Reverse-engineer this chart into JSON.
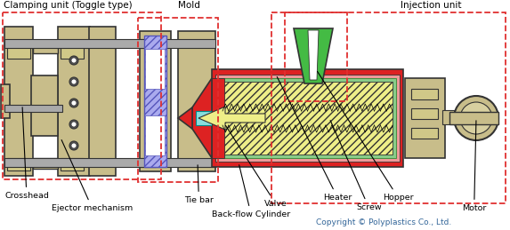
{
  "bg_color": "#ffffff",
  "dashed_red": "#e03030",
  "tan": "#c8bd8a",
  "tan_dark": "#a09870",
  "tan_edge": "#333333",
  "blue_fill": "#aaaaee",
  "blue_edge": "#5555bb",
  "green_fill": "#44bb44",
  "red_fill": "#dd2222",
  "pink_fill": "#ee9999",
  "yellow_fill": "#eeee88",
  "cyan_fill": "#88dddd",
  "green_light": "#88cc88",
  "gray_shaft": "#aaaaaa",
  "black": "#000000",
  "copyright_color": "#336699",
  "copyright_text": "Copyright © Polyplastics Co., Ltd.",
  "labels": {
    "clamping_unit": "Clamping unit (Toggle type)",
    "mold": "Mold",
    "injection_unit": "Injection unit",
    "crosshead": "Crosshead",
    "ejector": "Ejector mechanism",
    "tiebar": "Tie bar",
    "backflow": "Back-flow Cylinder",
    "valve": "Valve",
    "heater": "Heater",
    "screw": "Screw",
    "hopper": "Hopper",
    "motor": "Motor"
  }
}
